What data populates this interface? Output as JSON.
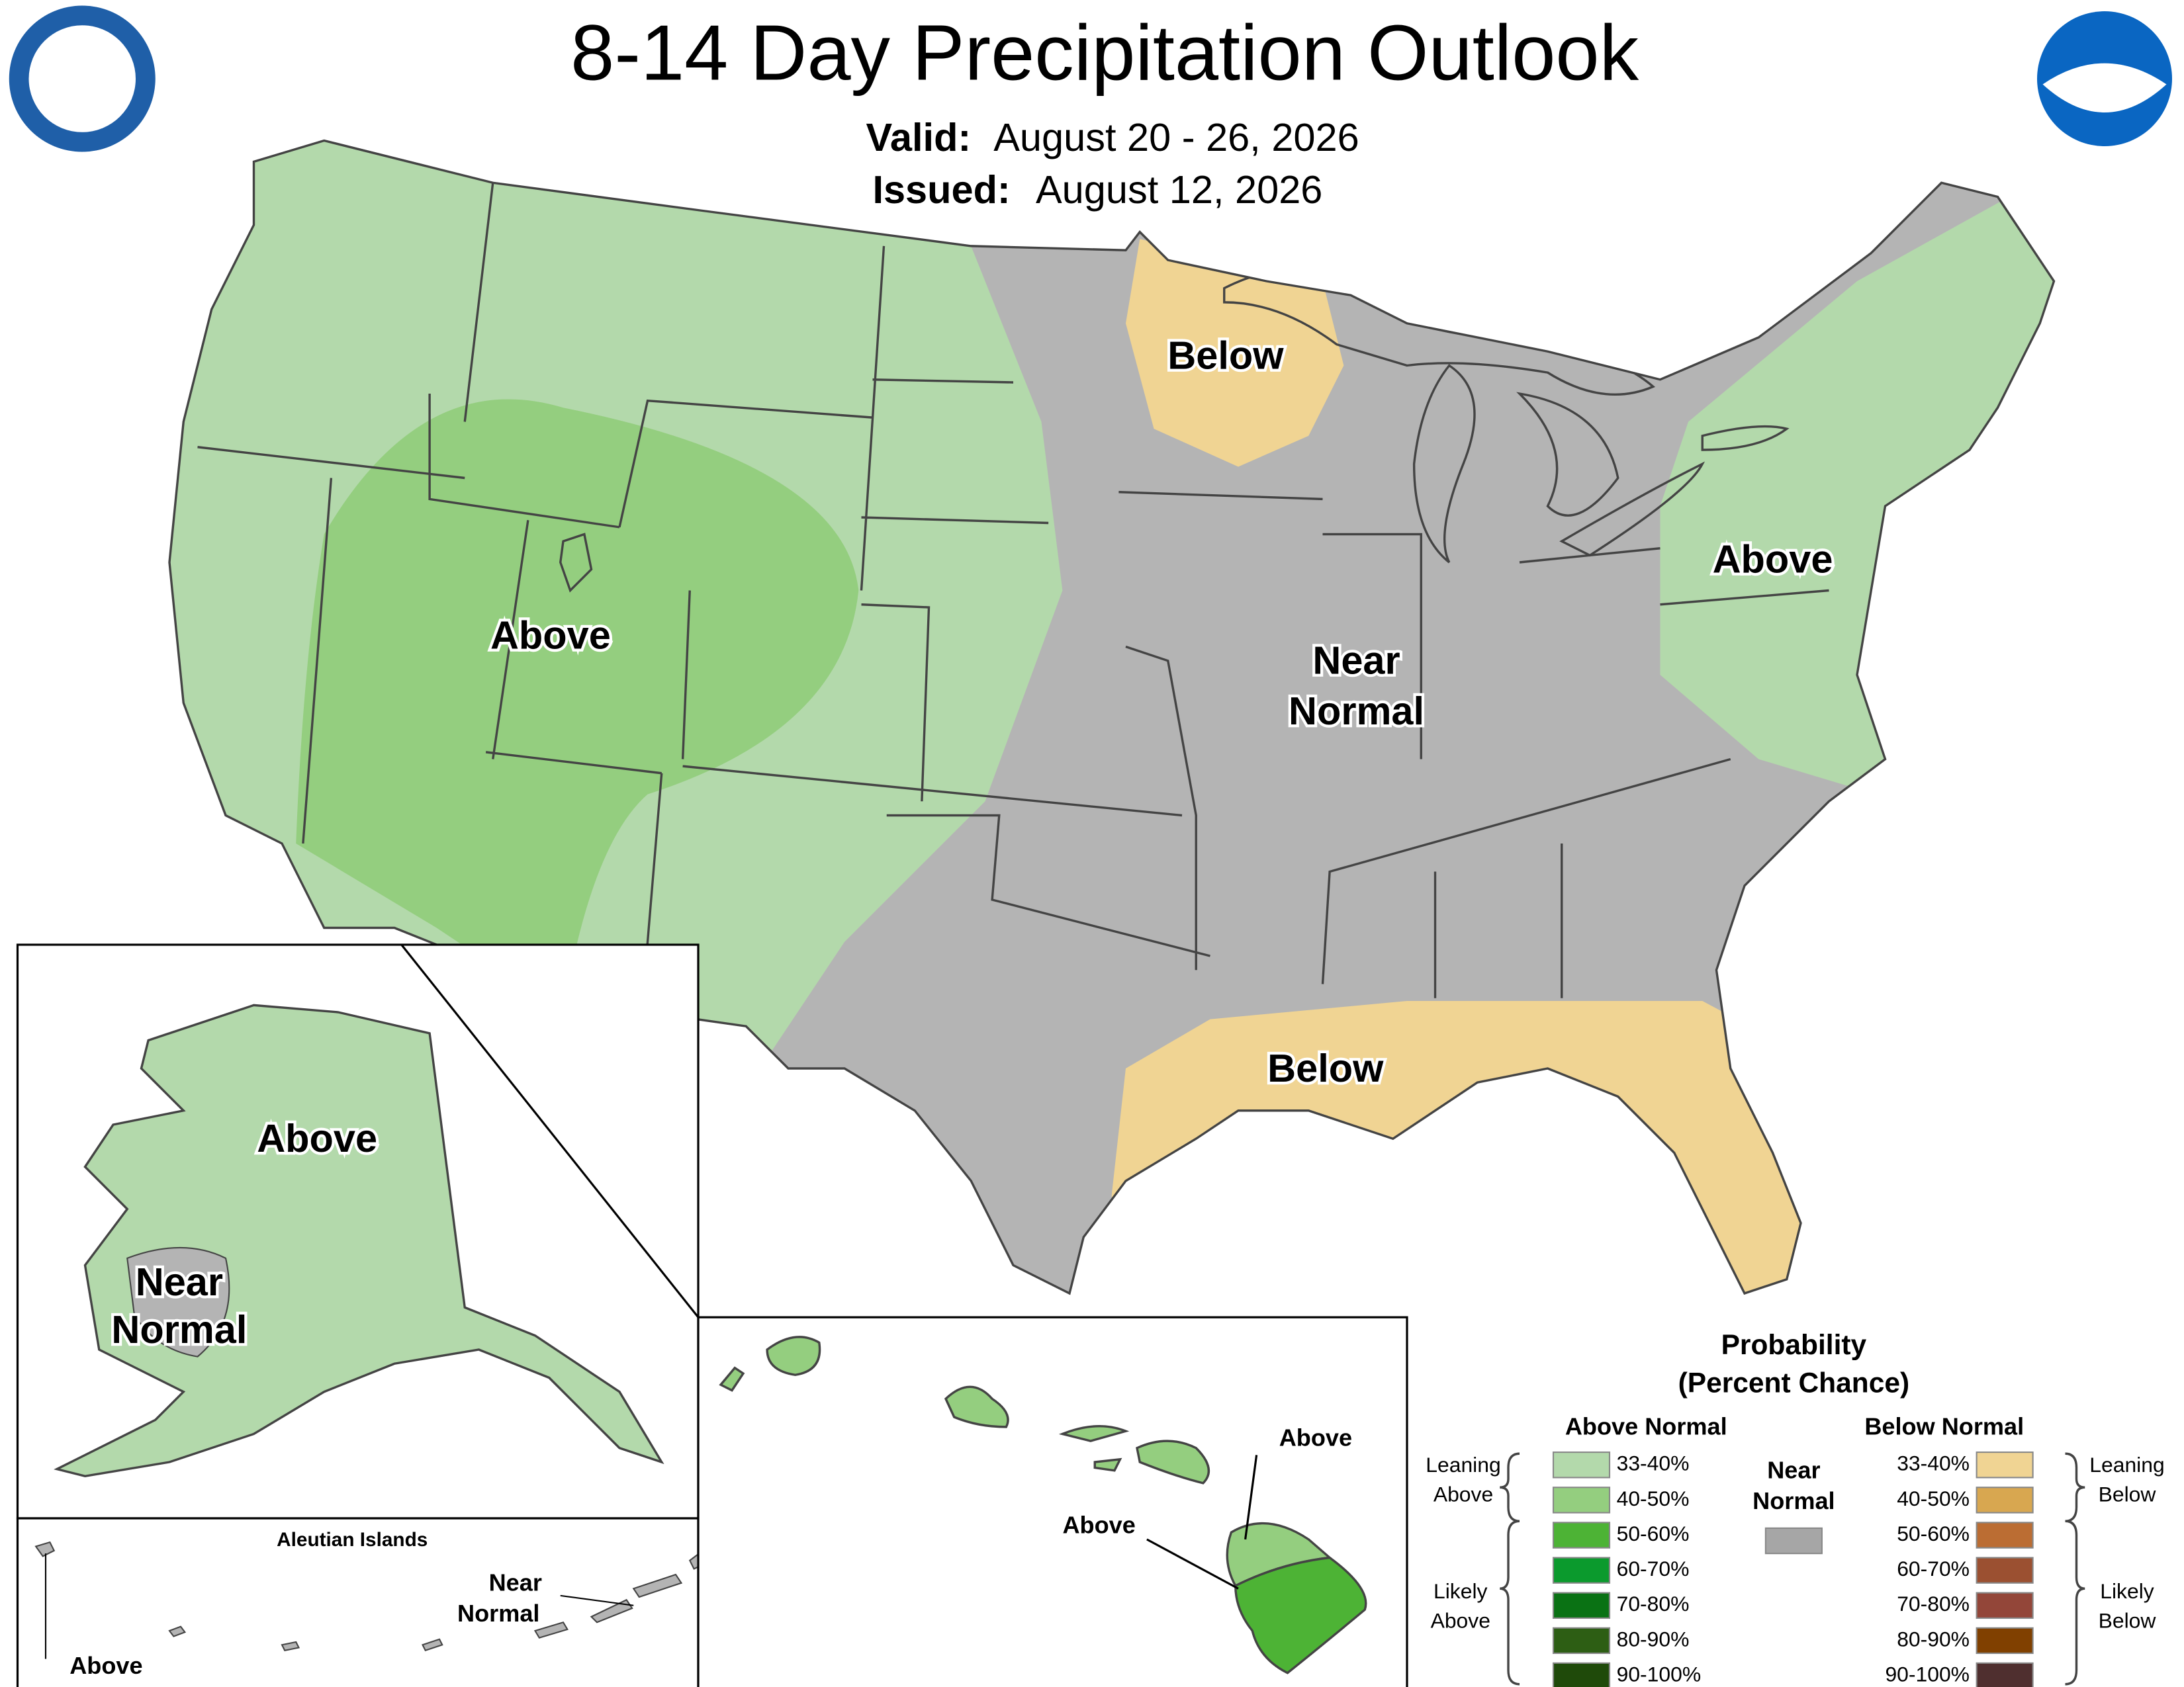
{
  "header": {
    "title": "8-14 Day Precipitation Outlook",
    "valid_label": "Valid:",
    "valid": "August 20 - 26, 2026",
    "issued_label": "Issued:",
    "issued": "August 12, 2026"
  },
  "conus_labels": {
    "below_north": "Below",
    "above_west": "Above",
    "near_normal": [
      "Near",
      "Normal"
    ],
    "above_east": "Above",
    "below_south": "Below"
  },
  "alaska_labels": {
    "above": "Above",
    "near_normal": [
      "Near",
      "Normal"
    ]
  },
  "aleutian_labels": {
    "title": "Aleutian Islands",
    "near_normal": [
      "Near",
      "Normal"
    ],
    "above": "Above"
  },
  "hawaii_labels": {
    "above_upper": "Above",
    "above_lower": "Above"
  },
  "legend": {
    "title": [
      "Probability",
      "(Percent Chance)"
    ],
    "above_normal": {
      "header": "Above Normal",
      "items": [
        {
          "label": "33-40%",
          "color": "#b3d9ab"
        },
        {
          "label": "40-50%",
          "color": "#94ce7f"
        },
        {
          "label": "50-60%",
          "color": "#4db335"
        },
        {
          "label": "60-70%",
          "color": "#0b9a2d"
        },
        {
          "label": "70-80%",
          "color": "#0a7214"
        },
        {
          "label": "80-90%",
          "color": "#2d5e14"
        },
        {
          "label": "90-100%",
          "color": "#1f4a0a"
        }
      ]
    },
    "below_normal": {
      "header": "Below Normal",
      "items": [
        {
          "label": "33-40%",
          "color": "#f0d493"
        },
        {
          "label": "40-50%",
          "color": "#d8a750"
        },
        {
          "label": "50-60%",
          "color": "#bb6d33"
        },
        {
          "label": "60-70%",
          "color": "#9b5031"
        },
        {
          "label": "70-80%",
          "color": "#934639"
        },
        {
          "label": "80-90%",
          "color": "#804000"
        },
        {
          "label": "90-100%",
          "color": "#4f2f2f"
        }
      ]
    },
    "near_normal": {
      "label": [
        "Near",
        "Normal"
      ],
      "color": "#a6a6a6"
    },
    "leaning_above": [
      "Leaning",
      "Above"
    ],
    "likely_above": [
      "Likely",
      "Above"
    ],
    "leaning_below": [
      "Leaning",
      "Below"
    ],
    "likely_below": [
      "Likely",
      "Below"
    ]
  }
}
